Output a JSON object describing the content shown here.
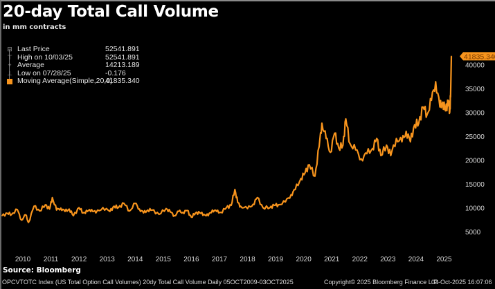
{
  "header": {
    "title": "20-day Total Call Volume",
    "subtitle": "in mm contracts"
  },
  "legend": {
    "items": [
      {
        "glyph": "tree-root-icon",
        "label": "Last Price",
        "value": "52541.891"
      },
      {
        "glyph": "high-marker-icon",
        "label": "High on 10/03/25",
        "value": "52541.891"
      },
      {
        "glyph": "average-marker-icon",
        "label": "Average",
        "value": "14213.189"
      },
      {
        "glyph": "low-marker-icon",
        "label": "Low on 07/28/25",
        "value": "-0.176"
      },
      {
        "glyph": "series-swatch-icon",
        "label": "Moving Average(Simple,20,0)",
        "value": "41835.340"
      }
    ]
  },
  "last_value_tag": "41835.340",
  "source": "Source: Bloomberg",
  "footer": {
    "description": "OPCVTOTC Index (US Total Option Call Volumes) 20dy Total Call Volume Daily 05OCT2009-03OCT2025",
    "copyright": "Copyright© 2025 Bloomberg Finance L.P.",
    "timestamp": "03-Oct-2025 16:07:06"
  },
  "colors": {
    "background": "#000000",
    "series": "#f7941d",
    "text": "#ffffff",
    "axis_text": "#d8d8d8"
  },
  "chart_data": {
    "type": "line",
    "title": "20-day Total Call Volume",
    "subtitle": "in mm contracts",
    "xlabel": "",
    "ylabel": "",
    "xlim": [
      2009.76,
      2025.76
    ],
    "ylim": [
      0,
      43000
    ],
    "y_axis_position": "right",
    "grid": false,
    "legend_position": "top-left",
    "x_ticks": [
      2010,
      2011,
      2012,
      2013,
      2014,
      2015,
      2016,
      2017,
      2018,
      2019,
      2020,
      2021,
      2022,
      2023,
      2024,
      2025
    ],
    "x_tick_labels": [
      "2010",
      "2011",
      "2012",
      "2013",
      "2014",
      "2015",
      "2016",
      "2017",
      "2018",
      "2019",
      "2020",
      "2021",
      "2022",
      "2023",
      "2024",
      "2025"
    ],
    "y_ticks": [
      5000,
      10000,
      15000,
      20000,
      25000,
      30000,
      35000,
      40000
    ],
    "y_tick_labels": [
      "5000",
      "10000",
      "15000",
      "20000",
      "25000",
      "30000",
      "35000",
      "40000"
    ],
    "series": [
      {
        "name": "Moving Average(Simple,20,0)",
        "color": "#f7941d",
        "x": [
          2009.76,
          2009.95,
          2010.1,
          2010.3,
          2010.45,
          2010.6,
          2010.7,
          2010.9,
          2011.1,
          2011.3,
          2011.45,
          2011.55,
          2011.7,
          2011.85,
          2012.0,
          2012.15,
          2012.3,
          2012.5,
          2012.65,
          2012.8,
          2012.95,
          2013.1,
          2013.35,
          2013.6,
          2013.75,
          2013.9,
          2014.1,
          2014.3,
          2014.5,
          2014.65,
          2014.8,
          2014.95,
          2015.1,
          2015.35,
          2015.6,
          2015.75,
          2015.9,
          2016.05,
          2016.2,
          2016.35,
          2016.5,
          2016.65,
          2016.8,
          2016.95,
          2017.1,
          2017.25,
          2017.4,
          2017.55,
          2017.75,
          2017.92,
          2018.05,
          2018.15,
          2018.25,
          2018.5,
          2018.7,
          2018.85,
          2019.05,
          2019.3,
          2019.45,
          2019.6,
          2019.85,
          2020.05,
          2020.2,
          2020.4,
          2020.55,
          2020.7,
          2020.9,
          2021.05,
          2021.15,
          2021.3,
          2021.45,
          2021.6,
          2021.75,
          2021.9,
          2022.0,
          2022.15,
          2022.35,
          2022.55,
          2022.75,
          2022.95,
          2023.1,
          2023.25,
          2023.45,
          2023.6,
          2023.8,
          2024.0,
          2024.15,
          2024.3,
          2024.45,
          2024.6,
          2024.75,
          2024.9,
          2025.05,
          2025.2,
          2025.35,
          2025.45,
          2025.55,
          2025.65,
          2025.7,
          2025.73,
          2025.76
        ],
        "values": [
          8400,
          8900,
          8700,
          9700,
          7500,
          8600,
          7000,
          10400,
          9400,
          10700,
          9800,
          12200,
          9600,
          10000,
          9300,
          9800,
          8400,
          10100,
          9000,
          9300,
          9700,
          9000,
          10100,
          9300,
          10400,
          10100,
          11000,
          9400,
          11000,
          9800,
          9000,
          9600,
          9600,
          8700,
          9900,
          9200,
          8400,
          9300,
          9100,
          9500,
          8100,
          9000,
          9000,
          8700,
          8400,
          9600,
          9300,
          9100,
          10100,
          10600,
          13900,
          11200,
          10400,
          9900,
          10800,
          12200,
          10100,
          10100,
          10600,
          10700,
          11300,
          12800,
          13900,
          16200,
          17400,
          19100,
          16700,
          22900,
          27800,
          24600,
          21700,
          25700,
          22600,
          23200,
          28700,
          23500,
          22200,
          20300,
          21400,
          22500,
          24600,
          21000,
          23200,
          21000,
          24600,
          23900,
          26100,
          23900,
          27500,
          27800,
          31200,
          29700,
          32600,
          36500,
          31200,
          32200,
          30400,
          32600,
          30100,
          33300,
          41835
        ]
      }
    ]
  }
}
